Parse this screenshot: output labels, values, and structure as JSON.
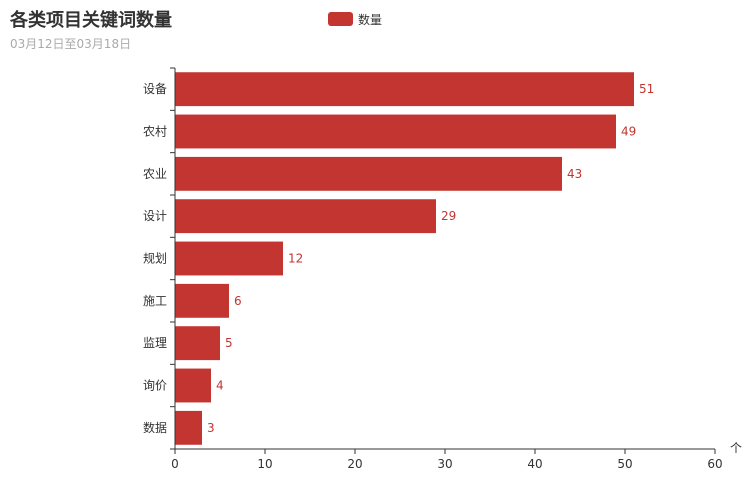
{
  "colors": {
    "bar": "#c23531",
    "axis": "#333333",
    "text": "#333333",
    "subtitle": "#aaaaaa"
  },
  "chart_data": {
    "type": "bar",
    "orientation": "horizontal",
    "title": "各类项目关键词数量",
    "subtitle": "03月12日至03月18日",
    "categories": [
      "设备",
      "农村",
      "农业",
      "设计",
      "规划",
      "施工",
      "监理",
      "询价",
      "数据"
    ],
    "series": [
      {
        "name": "数量",
        "values": [
          51,
          49,
          43,
          29,
          12,
          6,
          5,
          4,
          3
        ]
      }
    ],
    "xlim": [
      0,
      60
    ],
    "x_ticks": [
      "0",
      "10",
      "20",
      "30",
      "40",
      "50",
      "60"
    ],
    "axis_unit": "个",
    "legend": "top-center",
    "grid": false
  }
}
